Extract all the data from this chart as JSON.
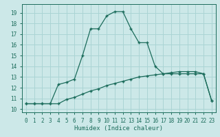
{
  "title": "",
  "xlabel": "Humidex (Indice chaleur)",
  "ylabel": "",
  "background_color": "#cce8e8",
  "grid_color": "#aad4d4",
  "line_color": "#1a6b5a",
  "x_ticks": [
    0,
    1,
    2,
    3,
    4,
    5,
    6,
    7,
    8,
    9,
    10,
    11,
    12,
    13,
    14,
    15,
    16,
    17,
    18,
    19,
    20,
    21,
    22,
    23
  ],
  "y_ticks": [
    10,
    11,
    12,
    13,
    14,
    15,
    16,
    17,
    18,
    19
  ],
  "xlim": [
    -0.5,
    23.5
  ],
  "ylim": [
    9.7,
    19.8
  ],
  "line1_x": [
    0,
    1,
    2,
    3,
    4,
    5,
    6,
    7,
    8,
    9,
    10,
    11,
    12,
    13,
    14,
    15,
    16,
    17,
    18,
    19,
    20,
    21,
    22,
    23
  ],
  "line1_y": [
    10.5,
    10.5,
    10.5,
    10.5,
    10.5,
    10.9,
    11.1,
    11.4,
    11.7,
    11.9,
    12.2,
    12.4,
    12.6,
    12.8,
    13.0,
    13.1,
    13.2,
    13.3,
    13.4,
    13.5,
    13.5,
    13.5,
    13.3,
    10.8
  ],
  "line2_x": [
    0,
    1,
    2,
    3,
    4,
    5,
    6,
    7,
    8,
    9,
    10,
    11,
    12,
    13,
    14,
    15,
    16,
    17,
    18,
    19,
    20,
    21,
    22,
    23
  ],
  "line2_y": [
    10.5,
    10.5,
    10.5,
    10.5,
    12.3,
    12.5,
    12.8,
    15.0,
    17.5,
    17.5,
    18.7,
    19.1,
    19.1,
    17.5,
    16.2,
    16.2,
    14.0,
    13.3,
    13.3,
    13.3,
    13.3,
    13.3,
    13.3,
    10.8
  ]
}
